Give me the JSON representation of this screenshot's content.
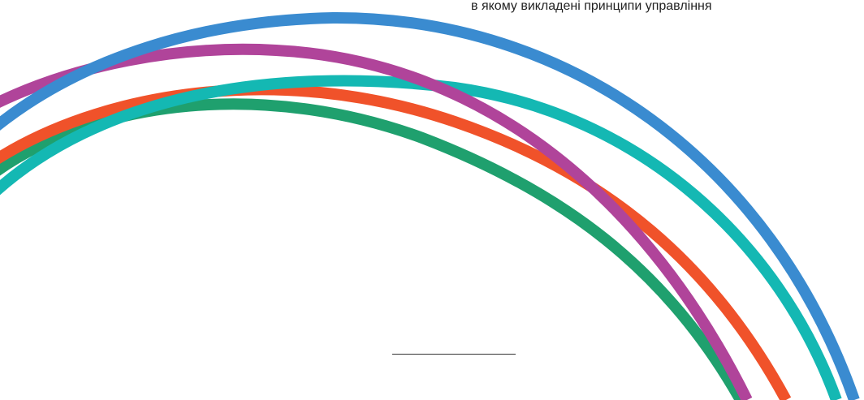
{
  "top_text": "в якому викладені принципи управління",
  "arcs": [
    {
      "name": "arc-green",
      "color": "#1fa06e"
    },
    {
      "name": "arc-orange",
      "color": "#f0522a"
    },
    {
      "name": "arc-teal",
      "color": "#14b8b3"
    },
    {
      "name": "arc-purple",
      "color": "#b0449a"
    },
    {
      "name": "arc-blue",
      "color": "#3a8bd0"
    }
  ]
}
